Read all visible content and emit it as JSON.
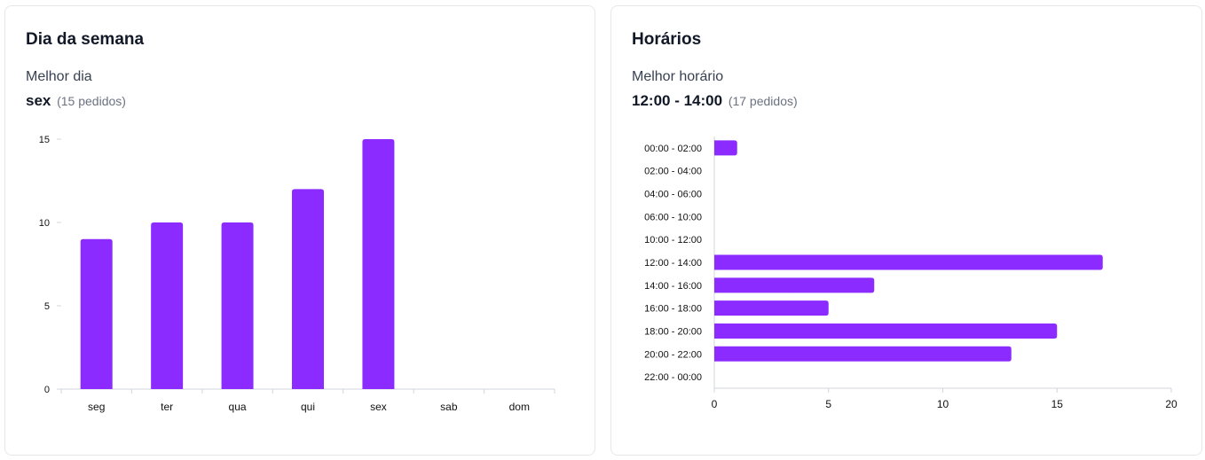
{
  "days_card": {
    "title": "Dia da semana",
    "best_label": "Melhor dia",
    "best_value": "sex",
    "best_count": "(15 pedidos)"
  },
  "hours_card": {
    "title": "Horários",
    "best_label": "Melhor horário",
    "best_value": "12:00 - 14:00",
    "best_count": "(17 pedidos)"
  },
  "chart_data": [
    {
      "type": "bar",
      "orientation": "vertical",
      "categories": [
        "seg",
        "ter",
        "qua",
        "qui",
        "sex",
        "sab",
        "dom"
      ],
      "values": [
        9,
        10,
        10,
        12,
        15,
        0,
        0
      ],
      "ylim": [
        0,
        15
      ],
      "yticks": [
        0,
        5,
        10,
        15
      ],
      "bar_color": "#8b2bff",
      "grid": false
    },
    {
      "type": "bar",
      "orientation": "horizontal",
      "categories": [
        "00:00 - 02:00",
        "02:00 - 04:00",
        "04:00 - 06:00",
        "06:00 - 10:00",
        "10:00 - 12:00",
        "12:00 - 14:00",
        "14:00 - 16:00",
        "16:00 - 18:00",
        "18:00 - 20:00",
        "20:00 - 22:00",
        "22:00 - 00:00"
      ],
      "values": [
        1,
        0,
        0,
        0,
        0,
        17,
        7,
        5,
        15,
        13,
        0
      ],
      "xlim": [
        0,
        20
      ],
      "xticks": [
        0,
        5,
        10,
        15,
        20
      ],
      "bar_color": "#8b2bff",
      "grid": false
    }
  ]
}
